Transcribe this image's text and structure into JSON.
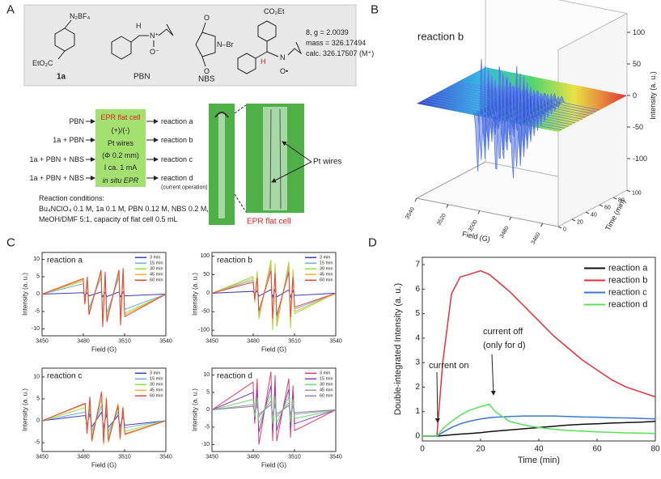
{
  "panel_labels": [
    "A",
    "B",
    "C",
    "D"
  ],
  "scheme": {
    "compound_1a": {
      "name": "1a",
      "labels": [
        "N₂BF₄",
        "EtO₂C"
      ]
    },
    "compound_pbn": {
      "name": "PBN",
      "labels": [
        "H",
        "N⁺",
        "O⁻"
      ]
    },
    "compound_nbs": {
      "name": "NBS",
      "labels": [
        "O",
        "O",
        "N–Br"
      ]
    },
    "compound_8": {
      "labels": [
        "CO₂Et",
        "H",
        "N",
        "O•"
      ]
    },
    "product_info": [
      "8, g = 2.0039",
      "mass = 326.17494",
      "calc. 326.17507 (M⁺)"
    ],
    "reactants": [
      "PBN",
      "1a + PBN",
      "1a + PBN + NBS",
      "1a + PBN + NBS"
    ],
    "cell_box": [
      "EPR flat cell",
      "(+)/(-)",
      "Pt wires",
      "(Φ 0.2 mm)",
      "I ca. 1 mA",
      "in situ EPR"
    ],
    "reactions": [
      "reaction a",
      "reaction b",
      "reaction c",
      "reaction d"
    ],
    "note": "(current operation)",
    "conditions": [
      "Reaction conditions:",
      "Bu₄NClO₄ 0.1 M, 1a 0.1 M, PBN 0.12 M, NBS 0.2 M,",
      "MeOH/DMF 5:1, capacity of flat cell 0.5 mL"
    ],
    "photo_labels": [
      "Pt wires",
      "EPR flat cell"
    ]
  },
  "chart_data": [
    {
      "type": "surface3d",
      "title": "reaction b",
      "x_label": "Field (G)",
      "y_label": "Time (min)",
      "z_label": "Intensity (a. u.)",
      "xlim": [
        3450,
        3540
      ],
      "xticks": [
        3460,
        3480,
        3500,
        3520,
        3540
      ],
      "ylim": [
        0,
        100
      ],
      "yticks": [
        0,
        20,
        40,
        60,
        80,
        100
      ],
      "zlim": [
        -150,
        130
      ],
      "zticks": [
        -100,
        -50,
        0,
        50,
        100
      ]
    },
    {
      "type": "line",
      "title": "reaction a",
      "x_label": "Field (G)",
      "y_label": "Intensity (a. u.)",
      "legend": "upper right",
      "x": [
        3450,
        3479.9,
        3481.1,
        3482.9,
        3484.1,
        3492.9,
        3494.1,
        3495.9,
        3497.1,
        3505.9,
        3507.1,
        3508.9,
        3510.1,
        3540
      ],
      "xlim": [
        3450,
        3540
      ],
      "xticks": [
        3450,
        3480,
        3510,
        3540
      ],
      "ylim": [
        -12,
        12
      ],
      "yticks": [
        -10,
        -5,
        0,
        5,
        10
      ],
      "series": [
        {
          "name": "3 min",
          "color": "#3b3bb5",
          "values": [
            0,
            0.4,
            -0.3,
            0.4,
            -0.5,
            0.6,
            -0.8,
            0.5,
            -0.7,
            0.6,
            -0.8,
            0.6,
            -0.5,
            0
          ]
        },
        {
          "name": "15 min",
          "color": "#74a9e0",
          "values": [
            0,
            3,
            -2,
            3.4,
            -4,
            4.8,
            -6.5,
            4.4,
            -5.5,
            4.8,
            -6.2,
            5.1,
            -4.4,
            0
          ]
        },
        {
          "name": "30 min",
          "color": "#8fe03c",
          "values": [
            0,
            3.8,
            -2.5,
            4.3,
            -5.1,
            6,
            -8.2,
            5.5,
            -6.9,
            6,
            -7.8,
            6.4,
            -5.5,
            0
          ]
        },
        {
          "name": "45 min",
          "color": "#f0b43c",
          "values": [
            0,
            4.2,
            -2.8,
            4.7,
            -5.6,
            6.6,
            -9,
            6,
            -7.5,
            6.6,
            -8.5,
            7,
            -6,
            0
          ]
        },
        {
          "name": "60 min",
          "color": "#e8453c",
          "values": [
            0,
            4.5,
            -3,
            5,
            -6,
            7,
            -9.5,
            6.5,
            -8,
            7,
            -9,
            7.5,
            -6.5,
            0
          ]
        }
      ]
    },
    {
      "type": "line",
      "title": "reaction b",
      "x_label": "Field (G)",
      "y_label": "Intensity (a. u.)",
      "legend": "upper right",
      "x": [
        3450,
        3479.9,
        3481.1,
        3482.9,
        3484.1,
        3492.9,
        3494.1,
        3495.9,
        3497.1,
        3505.9,
        3507.1,
        3508.9,
        3510.1,
        3540
      ],
      "xlim": [
        3450,
        3540
      ],
      "xticks": [
        3450,
        3480,
        3510,
        3540
      ],
      "ylim": [
        -115,
        110
      ],
      "yticks": [
        -100,
        -50,
        0,
        50,
        100
      ],
      "series": [
        {
          "name": "3 min",
          "color": "#3b3bb5",
          "values": [
            0,
            5,
            -3,
            7,
            -8,
            10,
            -11,
            9,
            -10,
            9,
            -11,
            7,
            -6,
            0
          ]
        },
        {
          "name": "15 min",
          "color": "#74a9e0",
          "values": [
            0,
            35,
            -20,
            48,
            -55,
            70,
            -80,
            62,
            -70,
            66,
            -75,
            50,
            -43,
            0
          ]
        },
        {
          "name": "30 min",
          "color": "#8fe03c",
          "values": [
            0,
            45,
            -25,
            60,
            -70,
            90,
            -100,
            80,
            -90,
            85,
            -95,
            65,
            -55,
            0
          ]
        },
        {
          "name": "45 min",
          "color": "#f0b43c",
          "values": [
            0,
            40,
            -22,
            55,
            -62,
            80,
            -90,
            72,
            -80,
            76,
            -85,
            58,
            -50,
            0
          ]
        },
        {
          "name": "60 min",
          "color": "#e8453c",
          "values": [
            0,
            30,
            -17,
            42,
            -48,
            60,
            -68,
            54,
            -60,
            57,
            -65,
            44,
            -38,
            0
          ]
        }
      ]
    },
    {
      "type": "line",
      "title": "reaction c",
      "x_label": "Field (G)",
      "y_label": "Intensity (a. u.)",
      "legend": "upper right",
      "x": [
        3450,
        3481.3,
        3482.7,
        3484.8,
        3486.2,
        3493.3,
        3494.7,
        3496.8,
        3498.2,
        3505.3,
        3506.7,
        3508.8,
        3510.2,
        3540
      ],
      "xlim": [
        3450,
        3540
      ],
      "xticks": [
        3450,
        3480,
        3510,
        3540
      ],
      "ylim": [
        -7,
        12
      ],
      "yticks": [
        -5,
        0,
        5,
        10
      ],
      "series": [
        {
          "name": "3 min",
          "color": "#3b3bb5",
          "values": [
            0,
            1.2,
            -0.9,
            1.6,
            -1.4,
            2,
            -1.6,
            1.6,
            -1.5,
            1.2,
            -1.4,
            1,
            -1,
            0
          ]
        },
        {
          "name": "15 min",
          "color": "#74a9e0",
          "values": [
            0,
            2,
            -1.5,
            2.8,
            -2.4,
            3.5,
            -2.8,
            2.8,
            -2.5,
            2,
            -2.3,
            1.7,
            -1.6,
            0
          ]
        },
        {
          "name": "30 min",
          "color": "#8fe03c",
          "values": [
            0,
            3,
            -2.2,
            4,
            -3.5,
            5,
            -4,
            4,
            -3.6,
            3,
            -3.3,
            2.5,
            -2.4,
            0
          ]
        },
        {
          "name": "45 min",
          "color": "#f0b43c",
          "values": [
            0,
            3.8,
            -2.8,
            5.2,
            -4.8,
            6.8,
            -5.5,
            5.5,
            -5,
            4,
            -4.5,
            3.3,
            -3.2,
            0
          ]
        },
        {
          "name": "60 min",
          "color": "#e8453c",
          "values": [
            0,
            4,
            -3,
            5.5,
            -4.5,
            6.5,
            -5,
            5,
            -4.5,
            3.5,
            -4,
            3,
            -3,
            0
          ]
        }
      ]
    },
    {
      "type": "line",
      "title": "reaction d",
      "x_label": "Field (G)",
      "y_label": "Intensity (a. u.)",
      "legend": "upper right",
      "x": [
        3450,
        3479.9,
        3481.1,
        3482.9,
        3484.1,
        3492.9,
        3494.1,
        3495.9,
        3497.1,
        3505.9,
        3507.1,
        3508.9,
        3510.1,
        3540
      ],
      "xlim": [
        3450,
        3540
      ],
      "xticks": [
        3450,
        3480,
        3510,
        3540
      ],
      "ylim": [
        -12,
        12
      ],
      "yticks": [
        -10,
        -5,
        0,
        5,
        10
      ],
      "series": [
        {
          "name": "3 min",
          "color": "#e83c6a",
          "values": [
            0,
            8,
            -4,
            9,
            -10,
            11,
            -9,
            10,
            -9,
            9,
            -8,
            7,
            -6,
            0
          ]
        },
        {
          "name": "15 min",
          "color": "#8b3cc0",
          "values": [
            0,
            5,
            -3,
            6,
            -6.5,
            7,
            -6,
            6.5,
            -6,
            6,
            -5.5,
            4.5,
            -4,
            0
          ]
        },
        {
          "name": "30 min",
          "color": "#6fd86f",
          "values": [
            0,
            3,
            -2,
            3.5,
            -4,
            4.5,
            -4,
            4,
            -3.8,
            3.8,
            -3.5,
            3,
            -2.5,
            0
          ]
        },
        {
          "name": "45 min",
          "color": "#9a9a9a",
          "values": [
            0,
            1.5,
            -1,
            2,
            -2,
            2.5,
            -2,
            2,
            -2,
            2,
            -1.8,
            1.5,
            -1.3,
            0
          ]
        },
        {
          "name": "60 min",
          "color": "#8a8ab0",
          "values": [
            0,
            1,
            -0.7,
            1.2,
            -1.3,
            1.5,
            -1.3,
            1.3,
            -1.2,
            1.2,
            -1.1,
            1,
            -0.8,
            0
          ]
        }
      ]
    },
    {
      "type": "line",
      "x_label": "Time (min)",
      "y_label": "Double-integrated Intensity (a. u.)",
      "legend": "upper right",
      "annotations": [
        "current on",
        "current off",
        "(only for d)"
      ],
      "x": [
        0,
        5,
        7,
        10,
        13,
        16,
        20,
        23,
        25,
        30,
        35,
        40,
        45,
        50,
        55,
        60,
        65,
        70,
        75,
        80
      ],
      "xlim": [
        0,
        80
      ],
      "xticks": [
        0,
        20,
        40,
        60,
        80
      ],
      "ylim": [
        -0.2,
        7.3
      ],
      "yticks": [
        0,
        1,
        2,
        3,
        4,
        5,
        6,
        7
      ],
      "series": [
        {
          "name": "reaction a",
          "color": "#111111",
          "values": [
            0,
            0,
            0.02,
            0.05,
            0.08,
            0.1,
            0.14,
            0.18,
            0.2,
            0.25,
            0.3,
            0.35,
            0.4,
            0.45,
            0.48,
            0.5,
            0.53,
            0.55,
            0.57,
            0.6
          ]
        },
        {
          "name": "reaction b",
          "color": "#e8303c",
          "values": [
            0,
            0,
            3,
            5.8,
            6.5,
            6.6,
            6.75,
            6.6,
            6.4,
            5.9,
            5.3,
            4.7,
            4.1,
            3.6,
            3.1,
            2.7,
            2.3,
            2,
            1.8,
            1.6
          ]
        },
        {
          "name": "reaction c",
          "color": "#3a78d8",
          "values": [
            0,
            0,
            0.15,
            0.35,
            0.5,
            0.6,
            0.7,
            0.75,
            0.77,
            0.8,
            0.82,
            0.82,
            0.82,
            0.8,
            0.78,
            0.77,
            0.75,
            0.74,
            0.72,
            0.7
          ]
        },
        {
          "name": "reaction d",
          "color": "#5ce05c",
          "values": [
            0,
            0,
            0.3,
            0.6,
            0.85,
            1.05,
            1.2,
            1.3,
            1,
            0.6,
            0.45,
            0.35,
            0.28,
            0.23,
            0.2,
            0.17,
            0.15,
            0.13,
            0.12,
            0.1
          ]
        }
      ]
    }
  ]
}
